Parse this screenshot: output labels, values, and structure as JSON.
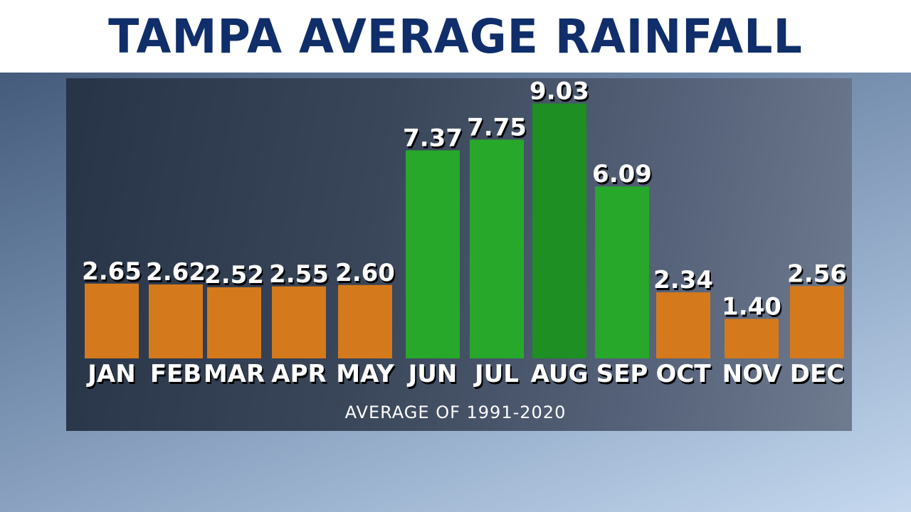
{
  "title": "TAMPA AVERAGE RAINFALL",
  "subtitle": "AVERAGE OF 1991-2020",
  "colors": {
    "title": "#0f2e6a",
    "dry": "#d47a1c",
    "wet": "#27a82a",
    "peak": "#1e8f22"
  },
  "chart_data": {
    "type": "bar",
    "title": "TAMPA AVERAGE RAINFALL",
    "categories": [
      "JAN",
      "FEB",
      "MAR",
      "APR",
      "MAY",
      "JUN",
      "JUL",
      "AUG",
      "SEP",
      "OCT",
      "NOV",
      "DEC"
    ],
    "values": [
      2.65,
      2.62,
      2.52,
      2.55,
      2.6,
      7.37,
      7.75,
      9.03,
      6.09,
      2.34,
      1.4,
      2.56
    ],
    "value_labels": [
      "2.65",
      "2.62",
      "2.52",
      "2.55",
      "2.60",
      "7.37",
      "7.75",
      "9.03",
      "6.09",
      "2.34",
      "1.40",
      "2.56"
    ],
    "bar_color_keys": [
      "dry",
      "dry",
      "dry",
      "dry",
      "dry",
      "wet",
      "wet",
      "peak",
      "wet",
      "dry",
      "dry",
      "dry"
    ],
    "note": "AVERAGE OF 1991-2020",
    "xlabel": "",
    "ylabel": "",
    "grid": false,
    "legend": "none"
  }
}
